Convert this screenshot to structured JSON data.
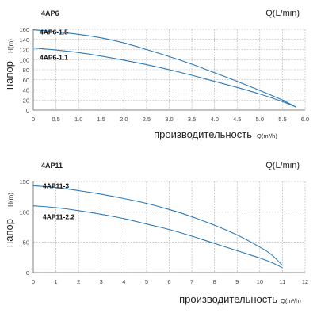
{
  "chart_data": [
    {
      "type": "line",
      "title": "4AP6",
      "top_unit": "Q(L/min)",
      "ylabel": "напор",
      "ylabel_unit": "H(m)",
      "xlabel": "производительность",
      "xlabel_unit": "Q(m³/h)",
      "xlim": [
        0,
        6.0
      ],
      "ylim": [
        0,
        160
      ],
      "xticks": [
        "0",
        "0.5",
        "1.0",
        "1.5",
        "2.0",
        "2.5",
        "3.0",
        "3.5",
        "4.0",
        "4.5",
        "5.0",
        "5.5",
        "6.0"
      ],
      "yticks": [
        "0",
        "20",
        "40",
        "60",
        "80",
        "100",
        "120",
        "140",
        "160"
      ],
      "grid": true,
      "series": [
        {
          "name": "4AP6-1.5",
          "x": [
            0,
            0.5,
            1.0,
            1.5,
            2.0,
            2.5,
            3.0,
            3.5,
            4.0,
            4.5,
            5.0,
            5.5,
            5.8
          ],
          "y": [
            159,
            155,
            150,
            143,
            133,
            120,
            106,
            91,
            74,
            57,
            39,
            20,
            6
          ]
        },
        {
          "name": "4AP6-1.1",
          "x": [
            0,
            0.5,
            1.0,
            1.5,
            2.0,
            2.5,
            3.0,
            3.5,
            4.0,
            4.5,
            5.0,
            5.5,
            5.8
          ],
          "y": [
            123,
            119,
            114,
            107,
            99,
            90,
            80,
            69,
            57,
            45,
            32,
            17,
            6
          ]
        }
      ]
    },
    {
      "type": "line",
      "title": "4AP11",
      "top_unit": "Q(L/min)",
      "ylabel": "напор",
      "ylabel_unit": "H(m)",
      "xlabel": "производительность",
      "xlabel_unit": "Q(m³/h)",
      "xlim": [
        0,
        12
      ],
      "ylim": [
        0,
        150
      ],
      "xticks": [
        "0",
        "1",
        "2",
        "3",
        "4",
        "5",
        "6",
        "7",
        "8",
        "9",
        "10",
        "11",
        "12"
      ],
      "yticks": [
        "0",
        "50",
        "100",
        "150"
      ],
      "grid": true,
      "series": [
        {
          "name": "4AP11-3",
          "x": [
            0,
            1,
            2,
            3,
            4,
            5,
            6,
            7,
            8,
            9,
            10,
            10.5,
            11
          ],
          "y": [
            143,
            140,
            135,
            129,
            122,
            114,
            104,
            92,
            78,
            62,
            42,
            30,
            12
          ]
        },
        {
          "name": "4AP11-2.2",
          "x": [
            0,
            1,
            2,
            3,
            4,
            5,
            6,
            7,
            8,
            9,
            10,
            10.5,
            11
          ],
          "y": [
            110,
            107,
            102,
            96,
            89,
            80,
            71,
            60,
            48,
            36,
            24,
            17,
            8
          ]
        }
      ]
    }
  ]
}
